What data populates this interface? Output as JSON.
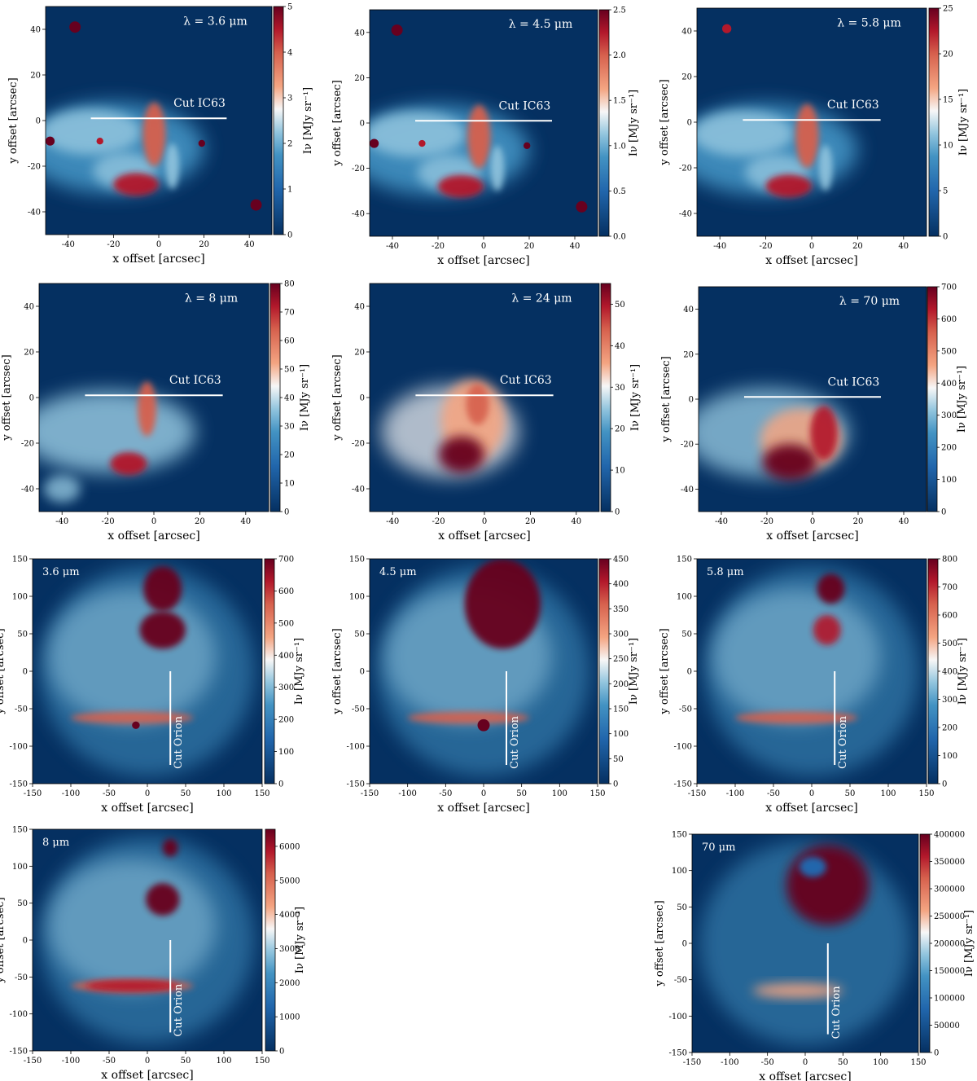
{
  "figure": {
    "description_labels": {
      "xlabel": "x offset [arcsec]",
      "ylabel": "y offset [arcsec]",
      "cbar_label": "Iν [MJy sr⁻¹]"
    }
  },
  "colors": {
    "low": "#053061",
    "midlow": "#4393c3",
    "mid": "#f7f7f7",
    "midhigh": "#f4a582",
    "high": "#67001f",
    "line": "#ffffff"
  },
  "chart_data": [
    {
      "type": "heatmap",
      "region": "IC63",
      "wavelength_label": "λ = 3.6 μm",
      "cut_label": "Cut IC63",
      "xlim": [
        -50,
        50
      ],
      "ylim": [
        -50,
        50
      ],
      "xticks": [
        -40,
        -20,
        0,
        20,
        40
      ],
      "yticks": [
        -40,
        -20,
        0,
        20,
        40
      ],
      "cbar_range": [
        0,
        5
      ],
      "cbar_ticks": [
        0,
        1,
        2,
        3,
        4,
        5
      ],
      "cut": {
        "x": [
          -30,
          30
        ],
        "y": [
          1,
          1
        ]
      },
      "xlabel": "x offset [arcsec]",
      "ylabel": "y offset [arcsec]",
      "cbar_label": "Iν [MJy sr⁻¹]"
    },
    {
      "type": "heatmap",
      "region": "IC63",
      "wavelength_label": "λ = 4.5 μm",
      "cut_label": "Cut IC63",
      "xlim": [
        -50,
        50
      ],
      "ylim": [
        -50,
        50
      ],
      "xticks": [
        -40,
        -20,
        0,
        20,
        40
      ],
      "yticks": [
        -40,
        -20,
        0,
        20,
        40
      ],
      "cbar_range": [
        0,
        2.5
      ],
      "cbar_ticks": [
        "0.0",
        "0.5",
        "1.0",
        "1.5",
        "2.0",
        "2.5"
      ],
      "cut": {
        "x": [
          -30,
          30
        ],
        "y": [
          1,
          1
        ]
      },
      "xlabel": "x offset [arcsec]",
      "ylabel": "y offset [arcsec]",
      "cbar_label": "Iν [MJy sr⁻¹]"
    },
    {
      "type": "heatmap",
      "region": "IC63",
      "wavelength_label": "λ = 5.8 μm",
      "cut_label": "Cut IC63",
      "xlim": [
        -50,
        50
      ],
      "ylim": [
        -50,
        50
      ],
      "xticks": [
        -40,
        -20,
        0,
        20,
        40
      ],
      "yticks": [
        -40,
        -20,
        0,
        20,
        40
      ],
      "cbar_range": [
        0,
        25
      ],
      "cbar_ticks": [
        0,
        5,
        10,
        15,
        20,
        25
      ],
      "cut": {
        "x": [
          -30,
          30
        ],
        "y": [
          1,
          1
        ]
      },
      "xlabel": "x offset [arcsec]",
      "ylabel": "y offset [arcsec]",
      "cbar_label": "Iν [MJy sr⁻¹]"
    },
    {
      "type": "heatmap",
      "region": "IC63",
      "wavelength_label": "λ = 8 μm",
      "cut_label": "Cut IC63",
      "xlim": [
        -50,
        50
      ],
      "ylim": [
        -50,
        50
      ],
      "xticks": [
        -40,
        -20,
        0,
        20,
        40
      ],
      "yticks": [
        -40,
        -20,
        0,
        20,
        40
      ],
      "cbar_range": [
        0,
        80
      ],
      "cbar_ticks": [
        0,
        10,
        20,
        30,
        40,
        50,
        60,
        70,
        80
      ],
      "cut": {
        "x": [
          -30,
          30
        ],
        "y": [
          1,
          1
        ]
      },
      "xlabel": "x offset [arcsec]",
      "ylabel": "y offset [arcsec]",
      "cbar_label": "Iν [MJy sr⁻¹]"
    },
    {
      "type": "heatmap",
      "region": "IC63",
      "wavelength_label": "λ = 24 μm",
      "cut_label": "Cut IC63",
      "xlim": [
        -50,
        50
      ],
      "ylim": [
        -50,
        50
      ],
      "xticks": [
        -40,
        -20,
        0,
        20,
        40
      ],
      "yticks": [
        -40,
        -20,
        0,
        20,
        40
      ],
      "cbar_range": [
        0,
        55
      ],
      "cbar_ticks": [
        0,
        10,
        20,
        30,
        40,
        50
      ],
      "cut": {
        "x": [
          -30,
          30
        ],
        "y": [
          1,
          1
        ]
      },
      "xlabel": "x offset [arcsec]",
      "ylabel": "y offset [arcsec]",
      "cbar_label": "Iν [MJy sr⁻¹]"
    },
    {
      "type": "heatmap",
      "region": "IC63",
      "wavelength_label": "λ = 70 μm",
      "cut_label": "Cut IC63",
      "xlim": [
        -50,
        50
      ],
      "ylim": [
        -50,
        50
      ],
      "xticks": [
        -40,
        -20,
        0,
        20,
        40
      ],
      "yticks": [
        -40,
        -20,
        0,
        20,
        40
      ],
      "cbar_range": [
        0,
        700
      ],
      "cbar_ticks": [
        0,
        100,
        200,
        300,
        400,
        500,
        600,
        700
      ],
      "cut": {
        "x": [
          -30,
          30
        ],
        "y": [
          1,
          1
        ]
      },
      "xlabel": "x offset [arcsec]",
      "ylabel": "y offset [arcsec]",
      "cbar_label": "Iν [MJy sr⁻¹]"
    },
    {
      "type": "heatmap",
      "region": "Orion",
      "wavelength_label": "3.6 μm",
      "cut_label": "Cut Orion",
      "xlim": [
        -150,
        150
      ],
      "ylim": [
        -150,
        150
      ],
      "xticks": [
        -150,
        -100,
        -50,
        0,
        50,
        100,
        150
      ],
      "yticks": [
        -150,
        -100,
        -50,
        0,
        50,
        100,
        150
      ],
      "cbar_range": [
        0,
        700
      ],
      "cbar_ticks": [
        0,
        100,
        200,
        300,
        400,
        500,
        600,
        700
      ],
      "cut": {
        "x": [
          30,
          30
        ],
        "y": [
          -125,
          0
        ]
      },
      "xlabel": "x offset [arcsec]",
      "ylabel": "y offset [arcsec]",
      "cbar_label": "Iν [MJy sr⁻¹]"
    },
    {
      "type": "heatmap",
      "region": "Orion",
      "wavelength_label": "4.5 μm",
      "cut_label": "Cut Orion",
      "xlim": [
        -150,
        150
      ],
      "ylim": [
        -150,
        150
      ],
      "xticks": [
        -150,
        -100,
        -50,
        0,
        50,
        100,
        150
      ],
      "yticks": [
        -150,
        -100,
        -50,
        0,
        50,
        100,
        150
      ],
      "cbar_range": [
        0,
        450
      ],
      "cbar_ticks": [
        0,
        50,
        100,
        150,
        200,
        250,
        300,
        350,
        400,
        450
      ],
      "cut": {
        "x": [
          30,
          30
        ],
        "y": [
          -125,
          0
        ]
      },
      "xlabel": "x offset [arcsec]",
      "ylabel": "y offset [arcsec]",
      "cbar_label": "Iν [MJy sr⁻¹]"
    },
    {
      "type": "heatmap",
      "region": "Orion",
      "wavelength_label": "5.8 μm",
      "cut_label": "Cut Orion",
      "xlim": [
        -150,
        150
      ],
      "ylim": [
        -150,
        150
      ],
      "xticks": [
        -150,
        -100,
        -50,
        0,
        50,
        100,
        150
      ],
      "yticks": [
        -150,
        -100,
        -50,
        0,
        50,
        100,
        150
      ],
      "cbar_range": [
        0,
        800
      ],
      "cbar_ticks": [
        0,
        100,
        200,
        300,
        400,
        500,
        600,
        700,
        800
      ],
      "cut": {
        "x": [
          30,
          30
        ],
        "y": [
          -125,
          0
        ]
      },
      "xlabel": "x offset [arcsec]",
      "ylabel": "y offset [arcsec]",
      "cbar_label": "Iν [MJy sr⁻¹]"
    },
    {
      "type": "heatmap",
      "region": "Orion",
      "wavelength_label": "8 μm",
      "cut_label": "Cut Orion",
      "xlim": [
        -150,
        150
      ],
      "ylim": [
        -150,
        150
      ],
      "xticks": [
        -150,
        -100,
        -50,
        0,
        50,
        100,
        150
      ],
      "yticks": [
        -150,
        -100,
        -50,
        0,
        50,
        100,
        150
      ],
      "cbar_range": [
        0,
        6500
      ],
      "cbar_ticks": [
        0,
        1000,
        2000,
        3000,
        4000,
        5000,
        6000
      ],
      "cut": {
        "x": [
          30,
          30
        ],
        "y": [
          -125,
          0
        ]
      },
      "xlabel": "x offset [arcsec]",
      "ylabel": "y offset [arcsec]",
      "cbar_label": "Iν [MJy sr⁻¹]"
    },
    {
      "type": "heatmap",
      "region": "Orion",
      "wavelength_label": "70 μm",
      "cut_label": "Cut Orion",
      "xlim": [
        -150,
        150
      ],
      "ylim": [
        -150,
        150
      ],
      "xticks": [
        -150,
        -100,
        -50,
        0,
        50,
        100,
        150
      ],
      "yticks": [
        -150,
        -100,
        -50,
        0,
        50,
        100,
        150
      ],
      "cbar_range": [
        0,
        400000
      ],
      "cbar_ticks": [
        0,
        50000,
        100000,
        150000,
        200000,
        250000,
        300000,
        350000,
        400000
      ],
      "cut": {
        "x": [
          30,
          30
        ],
        "y": [
          -125,
          0
        ]
      },
      "xlabel": "x offset [arcsec]",
      "ylabel": "y offset [arcsec]",
      "cbar_label": "Iν [MJy sr⁻¹]"
    }
  ]
}
